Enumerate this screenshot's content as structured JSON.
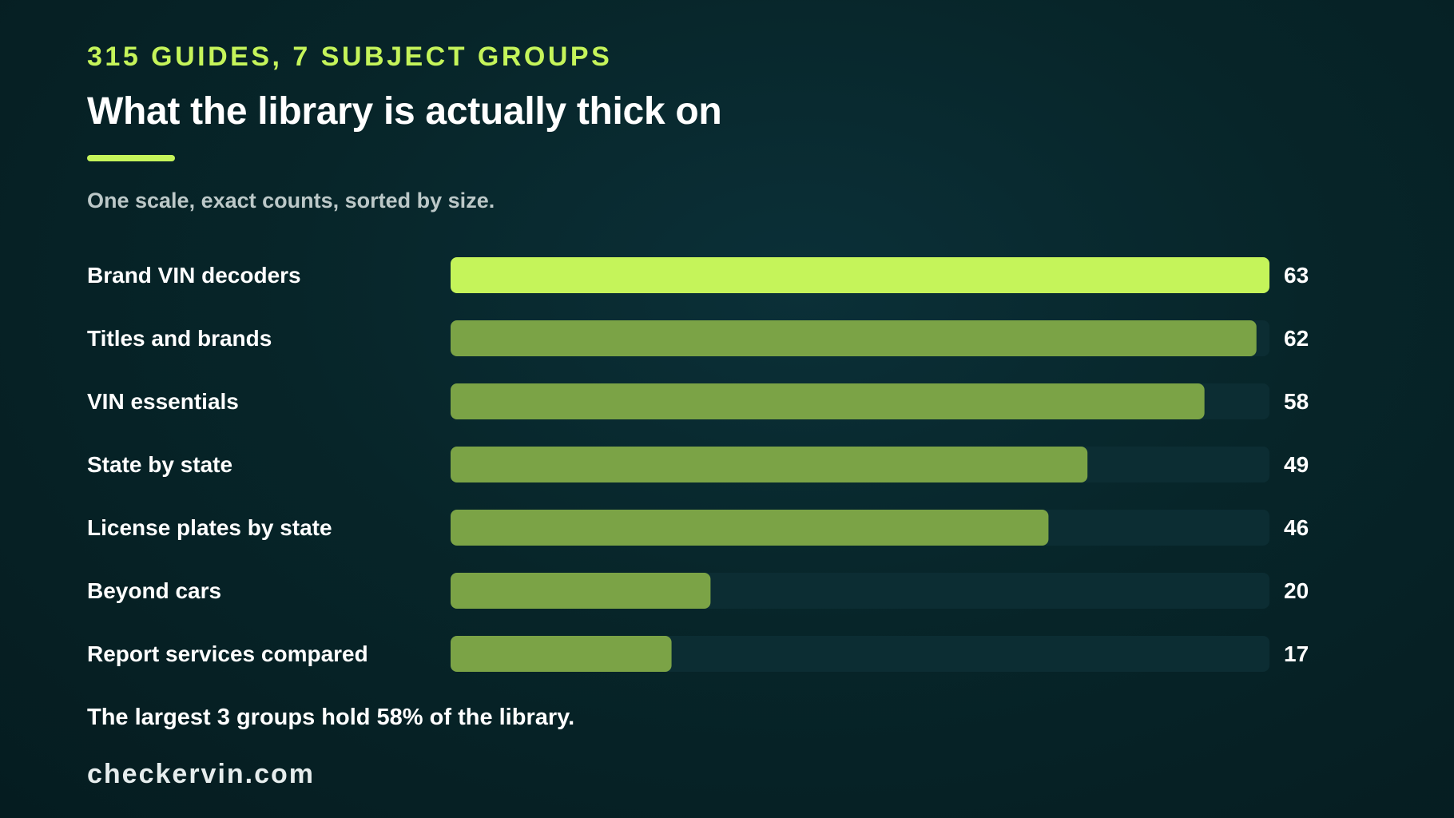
{
  "header": {
    "kicker": "315 GUIDES, 7 SUBJECT GROUPS",
    "title": "What the library is actually thick on",
    "subtitle": "One scale, exact counts, sorted by size."
  },
  "footer": {
    "note": "The largest 3 groups hold 58% of the library.",
    "brand": "checkervin.com"
  },
  "colors": {
    "accent": "#c5f45a",
    "bar": "#7ba346",
    "track": "#0c2d33",
    "background": "#072529"
  },
  "chart_data": {
    "type": "bar",
    "orientation": "horizontal",
    "categories": [
      "Brand VIN decoders",
      "Titles and brands",
      "VIN essentials",
      "State by state",
      "License plates by state",
      "Beyond cars",
      "Report services compared"
    ],
    "values": [
      63,
      62,
      58,
      49,
      46,
      20,
      17
    ],
    "xlim": [
      0,
      63
    ],
    "highlight_index": 0,
    "data_labels": true,
    "grid": false,
    "legend": "none"
  }
}
